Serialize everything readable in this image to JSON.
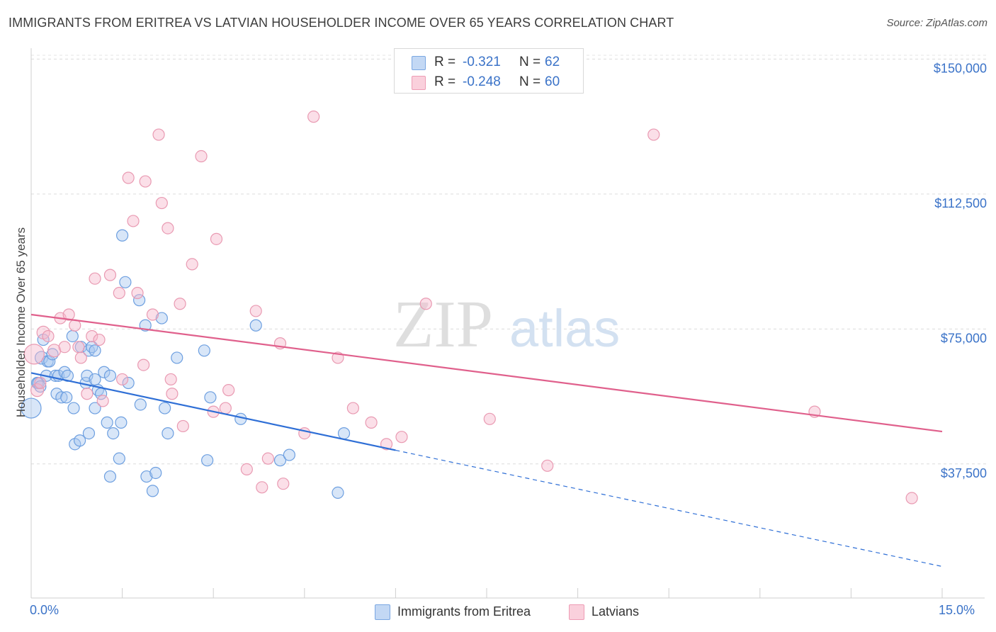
{
  "title": "IMMIGRANTS FROM ERITREA VS LATVIAN HOUSEHOLDER INCOME OVER 65 YEARS CORRELATION CHART",
  "source": "Source: ZipAtlas.com",
  "watermark": {
    "zip": "ZIP",
    "atlas": "atlas"
  },
  "legend_top": {
    "rows": [
      {
        "r_label": "R =",
        "r_value": "-0.321",
        "n_label": "N =",
        "n_value": "62",
        "color": "#a9c8f0"
      },
      {
        "r_label": "R =",
        "r_value": "-0.248",
        "n_label": "N =",
        "n_value": "60",
        "color": "#f6b8cb"
      }
    ]
  },
  "legend_bottom": [
    {
      "label": "Immigrants from Eritrea",
      "color": "#a9c8f0"
    },
    {
      "label": "Latvians",
      "color": "#f6b8cb"
    }
  ],
  "x_tick_left": "0.0%",
  "x_tick_right": "15.0%",
  "chart_data": {
    "type": "scatter",
    "title": "IMMIGRANTS FROM ERITREA VS LATVIAN HOUSEHOLDER INCOME OVER 65 YEARS CORRELATION CHART",
    "xlabel": "",
    "ylabel": "Householder Income Over 65 years",
    "xlim": [
      0,
      15
    ],
    "ylim": [
      3000,
      155000
    ],
    "y_ticks": [
      {
        "value": 37500,
        "label": "$37,500"
      },
      {
        "value": 75000,
        "label": "$75,000"
      },
      {
        "value": 112500,
        "label": "$112,500"
      },
      {
        "value": 150000,
        "label": "$150,000"
      }
    ],
    "x_ticks": [
      0,
      1.5,
      3,
      4.5,
      6,
      7.5,
      9,
      10.5,
      12,
      13.5,
      15
    ],
    "series": [
      {
        "name": "Immigrants from Eritrea",
        "color": "#6d9fe0",
        "fill": "#a9c8f0",
        "trend": {
          "x": [
            0,
            6
          ],
          "y": [
            62800,
            41300
          ],
          "color": "#2f6fd6"
        },
        "trend_ext": {
          "x": [
            6,
            15
          ],
          "y": [
            41300,
            9000
          ],
          "color": "#2f6fd6"
        },
        "points": [
          [
            0.0,
            53000,
            14
          ],
          [
            0.1,
            60000,
            8
          ],
          [
            0.12,
            60000,
            8
          ],
          [
            0.15,
            59000,
            8
          ],
          [
            0.17,
            67000,
            9
          ],
          [
            0.2,
            72000,
            8
          ],
          [
            0.25,
            62000,
            8
          ],
          [
            0.27,
            66000,
            8
          ],
          [
            0.3,
            66000,
            8
          ],
          [
            0.35,
            68000,
            8
          ],
          [
            0.4,
            62000,
            8
          ],
          [
            0.42,
            57000,
            8
          ],
          [
            0.45,
            62000,
            8
          ],
          [
            0.5,
            56000,
            8
          ],
          [
            0.55,
            63000,
            8
          ],
          [
            0.58,
            56000,
            8
          ],
          [
            0.6,
            62000,
            8
          ],
          [
            0.68,
            73000,
            8
          ],
          [
            0.7,
            53000,
            8
          ],
          [
            0.72,
            43000,
            8
          ],
          [
            0.8,
            44000,
            8
          ],
          [
            0.82,
            70000,
            8
          ],
          [
            0.9,
            60000,
            8
          ],
          [
            0.92,
            62000,
            8
          ],
          [
            0.95,
            69000,
            8
          ],
          [
            0.95,
            46000,
            8
          ],
          [
            1.0,
            70000,
            8
          ],
          [
            1.05,
            69000,
            8
          ],
          [
            1.05,
            53000,
            8
          ],
          [
            1.05,
            61000,
            8
          ],
          [
            1.1,
            58000,
            8
          ],
          [
            1.15,
            57000,
            8
          ],
          [
            1.2,
            63000,
            8
          ],
          [
            1.25,
            49000,
            8
          ],
          [
            1.3,
            62000,
            8
          ],
          [
            1.3,
            34000,
            8
          ],
          [
            1.35,
            46000,
            8
          ],
          [
            1.45,
            39000,
            8
          ],
          [
            1.48,
            49000,
            8
          ],
          [
            1.5,
            101000,
            8
          ],
          [
            1.55,
            88000,
            8
          ],
          [
            1.6,
            60000,
            8
          ],
          [
            1.78,
            83000,
            8
          ],
          [
            1.8,
            54000,
            8
          ],
          [
            1.88,
            76000,
            8
          ],
          [
            1.9,
            34000,
            8
          ],
          [
            2.0,
            30000,
            8
          ],
          [
            2.05,
            35000,
            8
          ],
          [
            2.15,
            78000,
            8
          ],
          [
            2.2,
            53000,
            8
          ],
          [
            2.25,
            46000,
            8
          ],
          [
            2.4,
            67000,
            8
          ],
          [
            2.85,
            69000,
            8
          ],
          [
            2.9,
            38500,
            8
          ],
          [
            2.95,
            56000,
            8
          ],
          [
            3.45,
            50000,
            8
          ],
          [
            3.7,
            76000,
            8
          ],
          [
            4.1,
            38500,
            8
          ],
          [
            4.25,
            40000,
            8
          ],
          [
            5.05,
            29500,
            8
          ],
          [
            5.15,
            46000,
            8
          ]
        ]
      },
      {
        "name": "Latvians",
        "color": "#e99ab2",
        "fill": "#f6b8cb",
        "trend": {
          "x": [
            0,
            15
          ],
          "y": [
            79000,
            46500
          ],
          "color": "#e0608c"
        },
        "points": [
          [
            0.05,
            68000,
            14
          ],
          [
            0.1,
            58000,
            9
          ],
          [
            0.15,
            60000,
            8
          ],
          [
            0.2,
            74000,
            9
          ],
          [
            0.28,
            73000,
            8
          ],
          [
            0.38,
            69000,
            9
          ],
          [
            0.48,
            78000,
            8
          ],
          [
            0.55,
            70000,
            8
          ],
          [
            0.62,
            79000,
            8
          ],
          [
            0.72,
            76000,
            8
          ],
          [
            0.78,
            70000,
            8
          ],
          [
            0.82,
            67000,
            8
          ],
          [
            0.92,
            57000,
            8
          ],
          [
            1.0,
            73000,
            8
          ],
          [
            1.05,
            89000,
            8
          ],
          [
            1.12,
            72000,
            8
          ],
          [
            1.18,
            55000,
            8
          ],
          [
            1.3,
            90000,
            8
          ],
          [
            1.45,
            85000,
            8
          ],
          [
            1.5,
            61000,
            8
          ],
          [
            1.6,
            117000,
            8
          ],
          [
            1.68,
            105000,
            8
          ],
          [
            1.75,
            85000,
            8
          ],
          [
            1.85,
            65000,
            8
          ],
          [
            1.88,
            116000,
            8
          ],
          [
            2.0,
            79000,
            8
          ],
          [
            2.1,
            129000,
            8
          ],
          [
            2.15,
            110000,
            8
          ],
          [
            2.25,
            103000,
            8
          ],
          [
            2.3,
            61000,
            8
          ],
          [
            2.32,
            57000,
            8
          ],
          [
            2.45,
            82000,
            8
          ],
          [
            2.5,
            48000,
            8
          ],
          [
            2.65,
            93000,
            8
          ],
          [
            2.8,
            123000,
            8
          ],
          [
            3.0,
            52000,
            8
          ],
          [
            3.05,
            100000,
            8
          ],
          [
            3.2,
            53000,
            8
          ],
          [
            3.25,
            58000,
            8
          ],
          [
            3.55,
            36000,
            8
          ],
          [
            3.7,
            80000,
            8
          ],
          [
            3.8,
            31000,
            8
          ],
          [
            3.9,
            39000,
            8
          ],
          [
            4.1,
            71000,
            8
          ],
          [
            4.15,
            32000,
            8
          ],
          [
            4.5,
            46000,
            8
          ],
          [
            4.65,
            134000,
            8
          ],
          [
            5.05,
            67000,
            8
          ],
          [
            5.3,
            53000,
            8
          ],
          [
            5.6,
            49000,
            8
          ],
          [
            5.85,
            43000,
            8
          ],
          [
            6.1,
            45000,
            8
          ],
          [
            6.5,
            82000,
            8
          ],
          [
            7.55,
            50000,
            8
          ],
          [
            8.5,
            37000,
            8
          ],
          [
            10.25,
            129000,
            8
          ],
          [
            12.9,
            52000,
            8
          ],
          [
            14.5,
            28000,
            8
          ]
        ]
      }
    ]
  }
}
